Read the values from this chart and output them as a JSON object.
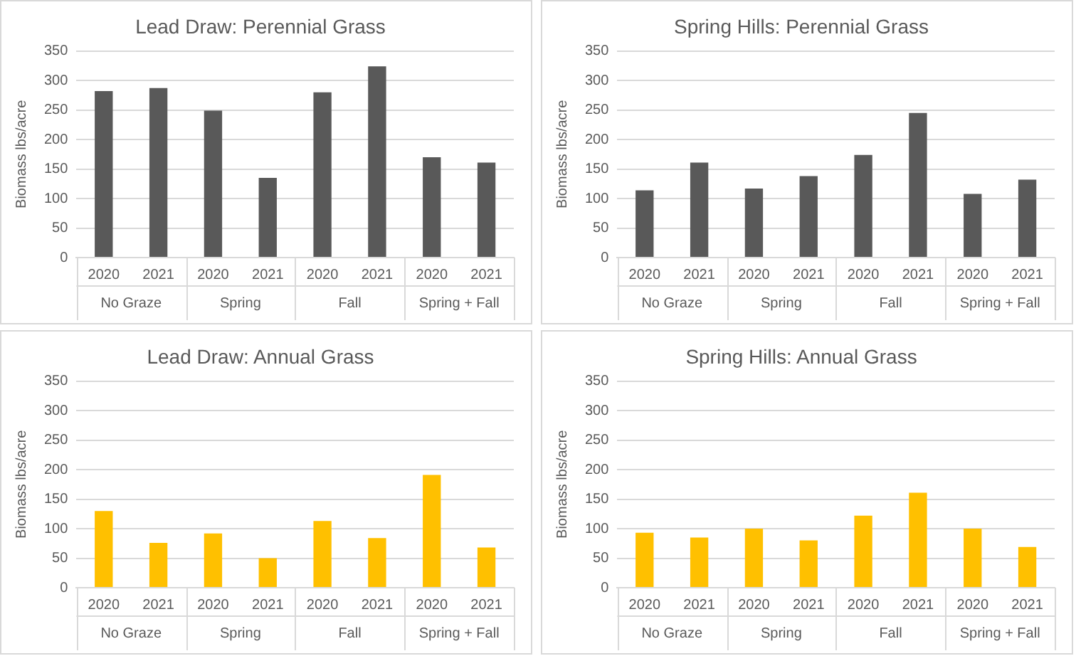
{
  "chart_data": [
    {
      "type": "bar",
      "title": "Lead Draw: Perennial Grass",
      "ylabel": "Biomass lbs/acre",
      "categories": [
        "2020",
        "2021",
        "2020",
        "2021",
        "2020",
        "2021",
        "2020",
        "2021"
      ],
      "values": [
        282,
        287,
        249,
        135,
        280,
        324,
        170,
        161
      ],
      "color": "#595959",
      "ylim": [
        0,
        350
      ],
      "yticks": [
        0,
        50,
        100,
        150,
        200,
        250,
        300,
        350
      ],
      "grid": "y",
      "annotations": [
        "No Graze",
        "Spring",
        "Fall",
        "Spring + Fall"
      ]
    },
    {
      "type": "bar",
      "title": "Spring Hills: Perennial Grass",
      "ylabel": "Biomass lbs/acre",
      "categories": [
        "2020",
        "2021",
        "2020",
        "2021",
        "2020",
        "2021",
        "2020",
        "2021"
      ],
      "values": [
        114,
        161,
        117,
        138,
        174,
        245,
        108,
        132
      ],
      "color": "#595959",
      "ylim": [
        0,
        350
      ],
      "yticks": [
        0,
        50,
        100,
        150,
        200,
        250,
        300,
        350
      ],
      "grid": "y",
      "annotations": [
        "No Graze",
        "Spring",
        "Fall",
        "Spring + Fall"
      ]
    },
    {
      "type": "bar",
      "title": "Lead Draw: Annual Grass",
      "ylabel": "Biomass lbs/acre",
      "categories": [
        "2020",
        "2021",
        "2020",
        "2021",
        "2020",
        "2021",
        "2020",
        "2021"
      ],
      "values": [
        130,
        76,
        92,
        50,
        113,
        84,
        191,
        68
      ],
      "color": "#ffc000",
      "ylim": [
        0,
        350
      ],
      "yticks": [
        0,
        50,
        100,
        150,
        200,
        250,
        300,
        350
      ],
      "grid": "y",
      "annotations": [
        "No Graze",
        "Spring",
        "Fall",
        "Spring + Fall"
      ]
    },
    {
      "type": "bar",
      "title": "Spring Hills: Annual Grass",
      "ylabel": "Biomass lbs/acre",
      "categories": [
        "2020",
        "2021",
        "2020",
        "2021",
        "2020",
        "2021",
        "2020",
        "2021"
      ],
      "values": [
        93,
        85,
        100,
        80,
        122,
        161,
        100,
        69
      ],
      "color": "#ffc000",
      "ylim": [
        0,
        350
      ],
      "yticks": [
        0,
        50,
        100,
        150,
        200,
        250,
        300,
        350
      ],
      "grid": "y",
      "annotations": [
        "No Graze",
        "Spring",
        "Fall",
        "Spring + Fall"
      ]
    }
  ]
}
